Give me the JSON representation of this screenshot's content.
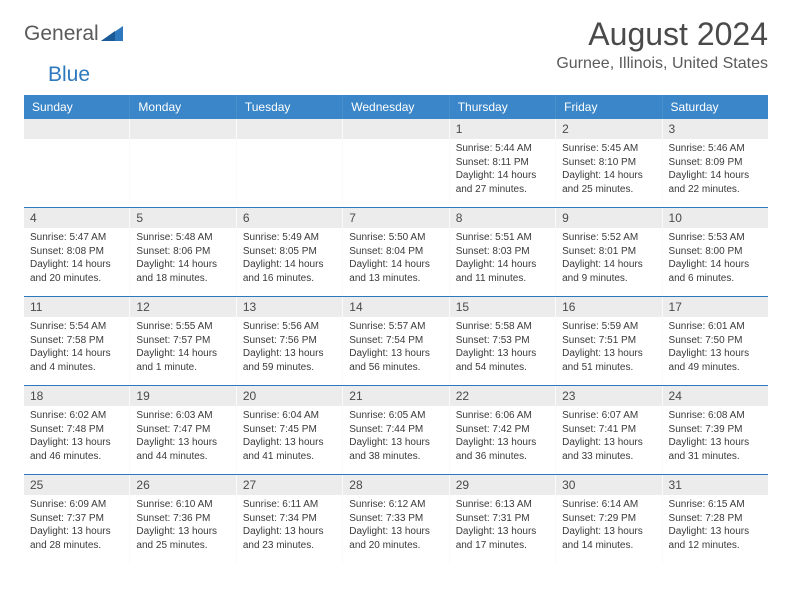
{
  "brand": {
    "part1": "General",
    "part2": "Blue"
  },
  "title": {
    "monthYear": "August 2024",
    "location": "Gurnee, Illinois, United States"
  },
  "colors": {
    "headerBg": "#3a86c8",
    "accent": "#2e78bd",
    "numBg": "#ececec"
  },
  "dayNames": [
    "Sunday",
    "Monday",
    "Tuesday",
    "Wednesday",
    "Thursday",
    "Friday",
    "Saturday"
  ],
  "weeks": [
    [
      {
        "n": "",
        "sunrise": "",
        "sunset": "",
        "daylight": ""
      },
      {
        "n": "",
        "sunrise": "",
        "sunset": "",
        "daylight": ""
      },
      {
        "n": "",
        "sunrise": "",
        "sunset": "",
        "daylight": ""
      },
      {
        "n": "",
        "sunrise": "",
        "sunset": "",
        "daylight": ""
      },
      {
        "n": "1",
        "sunrise": "Sunrise: 5:44 AM",
        "sunset": "Sunset: 8:11 PM",
        "daylight": "Daylight: 14 hours and 27 minutes."
      },
      {
        "n": "2",
        "sunrise": "Sunrise: 5:45 AM",
        "sunset": "Sunset: 8:10 PM",
        "daylight": "Daylight: 14 hours and 25 minutes."
      },
      {
        "n": "3",
        "sunrise": "Sunrise: 5:46 AM",
        "sunset": "Sunset: 8:09 PM",
        "daylight": "Daylight: 14 hours and 22 minutes."
      }
    ],
    [
      {
        "n": "4",
        "sunrise": "Sunrise: 5:47 AM",
        "sunset": "Sunset: 8:08 PM",
        "daylight": "Daylight: 14 hours and 20 minutes."
      },
      {
        "n": "5",
        "sunrise": "Sunrise: 5:48 AM",
        "sunset": "Sunset: 8:06 PM",
        "daylight": "Daylight: 14 hours and 18 minutes."
      },
      {
        "n": "6",
        "sunrise": "Sunrise: 5:49 AM",
        "sunset": "Sunset: 8:05 PM",
        "daylight": "Daylight: 14 hours and 16 minutes."
      },
      {
        "n": "7",
        "sunrise": "Sunrise: 5:50 AM",
        "sunset": "Sunset: 8:04 PM",
        "daylight": "Daylight: 14 hours and 13 minutes."
      },
      {
        "n": "8",
        "sunrise": "Sunrise: 5:51 AM",
        "sunset": "Sunset: 8:03 PM",
        "daylight": "Daylight: 14 hours and 11 minutes."
      },
      {
        "n": "9",
        "sunrise": "Sunrise: 5:52 AM",
        "sunset": "Sunset: 8:01 PM",
        "daylight": "Daylight: 14 hours and 9 minutes."
      },
      {
        "n": "10",
        "sunrise": "Sunrise: 5:53 AM",
        "sunset": "Sunset: 8:00 PM",
        "daylight": "Daylight: 14 hours and 6 minutes."
      }
    ],
    [
      {
        "n": "11",
        "sunrise": "Sunrise: 5:54 AM",
        "sunset": "Sunset: 7:58 PM",
        "daylight": "Daylight: 14 hours and 4 minutes."
      },
      {
        "n": "12",
        "sunrise": "Sunrise: 5:55 AM",
        "sunset": "Sunset: 7:57 PM",
        "daylight": "Daylight: 14 hours and 1 minute."
      },
      {
        "n": "13",
        "sunrise": "Sunrise: 5:56 AM",
        "sunset": "Sunset: 7:56 PM",
        "daylight": "Daylight: 13 hours and 59 minutes."
      },
      {
        "n": "14",
        "sunrise": "Sunrise: 5:57 AM",
        "sunset": "Sunset: 7:54 PM",
        "daylight": "Daylight: 13 hours and 56 minutes."
      },
      {
        "n": "15",
        "sunrise": "Sunrise: 5:58 AM",
        "sunset": "Sunset: 7:53 PM",
        "daylight": "Daylight: 13 hours and 54 minutes."
      },
      {
        "n": "16",
        "sunrise": "Sunrise: 5:59 AM",
        "sunset": "Sunset: 7:51 PM",
        "daylight": "Daylight: 13 hours and 51 minutes."
      },
      {
        "n": "17",
        "sunrise": "Sunrise: 6:01 AM",
        "sunset": "Sunset: 7:50 PM",
        "daylight": "Daylight: 13 hours and 49 minutes."
      }
    ],
    [
      {
        "n": "18",
        "sunrise": "Sunrise: 6:02 AM",
        "sunset": "Sunset: 7:48 PM",
        "daylight": "Daylight: 13 hours and 46 minutes."
      },
      {
        "n": "19",
        "sunrise": "Sunrise: 6:03 AM",
        "sunset": "Sunset: 7:47 PM",
        "daylight": "Daylight: 13 hours and 44 minutes."
      },
      {
        "n": "20",
        "sunrise": "Sunrise: 6:04 AM",
        "sunset": "Sunset: 7:45 PM",
        "daylight": "Daylight: 13 hours and 41 minutes."
      },
      {
        "n": "21",
        "sunrise": "Sunrise: 6:05 AM",
        "sunset": "Sunset: 7:44 PM",
        "daylight": "Daylight: 13 hours and 38 minutes."
      },
      {
        "n": "22",
        "sunrise": "Sunrise: 6:06 AM",
        "sunset": "Sunset: 7:42 PM",
        "daylight": "Daylight: 13 hours and 36 minutes."
      },
      {
        "n": "23",
        "sunrise": "Sunrise: 6:07 AM",
        "sunset": "Sunset: 7:41 PM",
        "daylight": "Daylight: 13 hours and 33 minutes."
      },
      {
        "n": "24",
        "sunrise": "Sunrise: 6:08 AM",
        "sunset": "Sunset: 7:39 PM",
        "daylight": "Daylight: 13 hours and 31 minutes."
      }
    ],
    [
      {
        "n": "25",
        "sunrise": "Sunrise: 6:09 AM",
        "sunset": "Sunset: 7:37 PM",
        "daylight": "Daylight: 13 hours and 28 minutes."
      },
      {
        "n": "26",
        "sunrise": "Sunrise: 6:10 AM",
        "sunset": "Sunset: 7:36 PM",
        "daylight": "Daylight: 13 hours and 25 minutes."
      },
      {
        "n": "27",
        "sunrise": "Sunrise: 6:11 AM",
        "sunset": "Sunset: 7:34 PM",
        "daylight": "Daylight: 13 hours and 23 minutes."
      },
      {
        "n": "28",
        "sunrise": "Sunrise: 6:12 AM",
        "sunset": "Sunset: 7:33 PM",
        "daylight": "Daylight: 13 hours and 20 minutes."
      },
      {
        "n": "29",
        "sunrise": "Sunrise: 6:13 AM",
        "sunset": "Sunset: 7:31 PM",
        "daylight": "Daylight: 13 hours and 17 minutes."
      },
      {
        "n": "30",
        "sunrise": "Sunrise: 6:14 AM",
        "sunset": "Sunset: 7:29 PM",
        "daylight": "Daylight: 13 hours and 14 minutes."
      },
      {
        "n": "31",
        "sunrise": "Sunrise: 6:15 AM",
        "sunset": "Sunset: 7:28 PM",
        "daylight": "Daylight: 13 hours and 12 minutes."
      }
    ]
  ]
}
